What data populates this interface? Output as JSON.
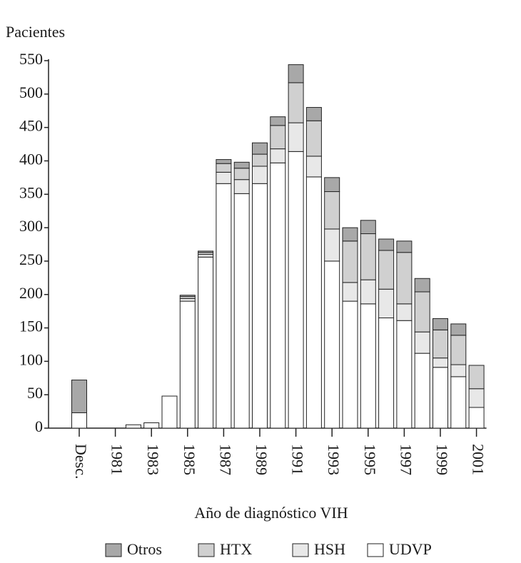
{
  "chart_data": {
    "type": "stacked_bar",
    "y_axis_label": "Pacientes",
    "x_axis_label": "Año de diagnóstico VIH",
    "categories": [
      "Desc.",
      null,
      "1981",
      null,
      "1983",
      null,
      "1985",
      null,
      "1987",
      null,
      "1989",
      null,
      "1991",
      null,
      "1993",
      null,
      "1995",
      null,
      "1997",
      null,
      "1999",
      null,
      "2001"
    ],
    "series": [
      {
        "name": "UDVP",
        "color": "#ffffff",
        "values": [
          23,
          0,
          0,
          5,
          8,
          48,
          190,
          256,
          366,
          351,
          366,
          397,
          414,
          376,
          250,
          190,
          186,
          165,
          161,
          112,
          91,
          77,
          31
        ]
      },
      {
        "name": "HSH",
        "color": "#e8e8e8",
        "values": [
          0,
          0,
          0,
          0,
          0,
          0,
          4,
          4,
          17,
          21,
          26,
          21,
          43,
          31,
          48,
          28,
          36,
          43,
          25,
          32,
          14,
          18,
          28
        ]
      },
      {
        "name": "HTX",
        "color": "#d0d0d0",
        "values": [
          0,
          0,
          0,
          0,
          0,
          0,
          3,
          3,
          13,
          17,
          18,
          35,
          60,
          53,
          56,
          62,
          69,
          58,
          77,
          60,
          42,
          44,
          35
        ]
      },
      {
        "name": "Otros",
        "color": "#a8a8a8",
        "values": [
          49,
          0,
          0,
          0,
          0,
          0,
          2,
          2,
          6,
          9,
          17,
          13,
          27,
          20,
          21,
          20,
          20,
          17,
          17,
          20,
          17,
          17,
          0
        ]
      }
    ],
    "ylim": [
      0,
      550
    ],
    "yticks": [
      0,
      50,
      100,
      150,
      200,
      250,
      300,
      350,
      400,
      450,
      500,
      550
    ]
  }
}
